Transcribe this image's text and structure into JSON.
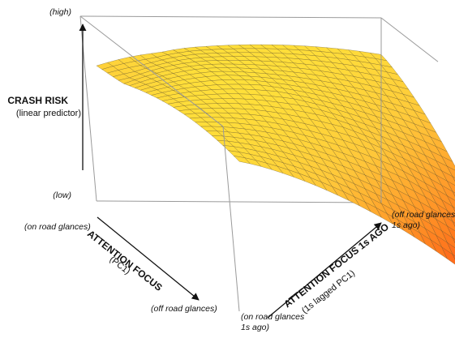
{
  "chart_data": {
    "type": "surface",
    "title": "",
    "z_axis": {
      "label": "CRASH RISK",
      "sublabel": "(linear predictor)",
      "tick_high": "(high)",
      "tick_low": "(low)"
    },
    "x_axis": {
      "label": "ATTENTION FOCUS",
      "sublabel": "(PC1)",
      "tick_start": "(on road glances)",
      "tick_end": "(off road glances)"
    },
    "y_axis": {
      "label": "ATTENTION FOCUS 1s AGO",
      "sublabel": "(1s lagged PC1)",
      "tick_start": "(on road glances 1s ago)",
      "tick_end": "(off road glances 1s ago)"
    },
    "x_range": [
      0,
      1
    ],
    "y_range": [
      0,
      1
    ],
    "z_range": [
      "low",
      "high"
    ],
    "grid_resolution": 26,
    "colormap": [
      "#ff1a10",
      "#ff7a1e",
      "#ffc83a",
      "#fff03a"
    ],
    "grid": true,
    "box": true
  }
}
